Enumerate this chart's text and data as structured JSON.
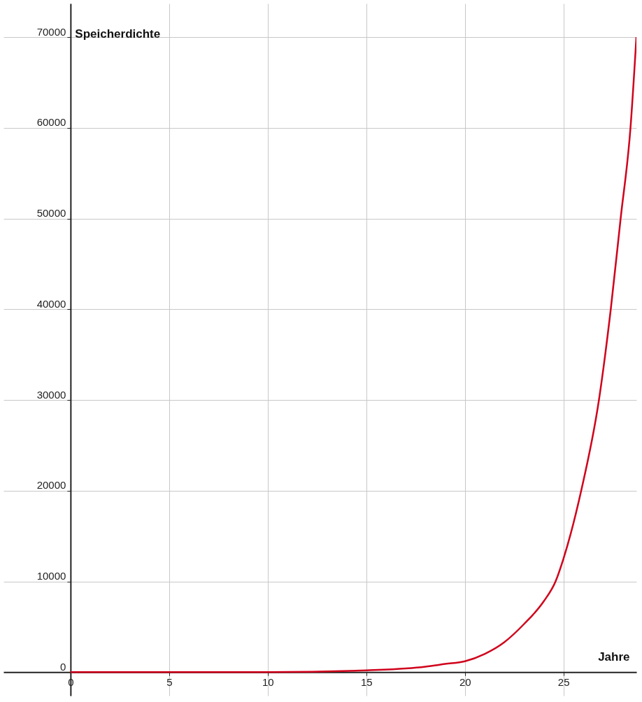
{
  "chart_data": {
    "type": "line",
    "xlabel": "Jahre",
    "ylabel": "Speicherdichte",
    "x": [
      0,
      5,
      10,
      15,
      17,
      18,
      19,
      20,
      21,
      22,
      23,
      24,
      24.6,
      25,
      25.9,
      26.8,
      27.4,
      27.9,
      28.4,
      28.7
    ],
    "series": [
      {
        "color": "#d0021b",
        "values": [
          0,
          0,
          0,
          200,
          400,
          600,
          900,
          1200,
          2000,
          3300,
          5300,
          7800,
          10000,
          12500,
          20000,
          30000,
          40000,
          50000,
          60000,
          70000
        ]
      }
    ],
    "xlim": [
      -3.4,
      28.7
    ],
    "ylim": [
      -2600,
      73700
    ],
    "xticks": [
      0,
      5,
      10,
      15,
      20,
      25
    ],
    "yticks": [
      0,
      10000,
      20000,
      30000,
      40000,
      50000,
      60000,
      70000
    ],
    "grid": true,
    "marker": "none",
    "line_style": "solid"
  }
}
